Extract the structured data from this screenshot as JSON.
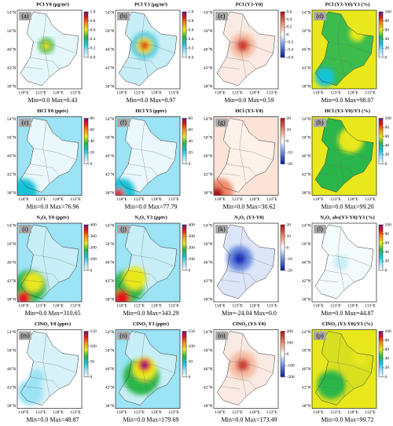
{
  "map_axes": {
    "lat": [
      "54°N",
      "50°N",
      "46°N",
      "42°N",
      "38°N"
    ],
    "lon": [
      "118°E",
      "123°E",
      "128°E",
      "133°E"
    ]
  },
  "panels": [
    {
      "label": "(a)",
      "title": "PCl Y0 (μg/m³)",
      "stats": "Min=0.0  Max=0.43",
      "colormap": "rainbow",
      "clim": [
        0,
        1
      ],
      "cticks": [
        {
          "value": 0,
          "label": "0.0"
        },
        0.2,
        0.4,
        0.6,
        0.8,
        {
          "value": 1,
          "label": "1.0"
        }
      ]
    },
    {
      "label": "(b)",
      "title": "PCl Y3 (μg/m³)",
      "stats": "Min=0.0  Max=0.97",
      "colormap": "rainbow",
      "clim": [
        0,
        1
      ],
      "cticks": [
        {
          "value": 0,
          "label": "0.0"
        },
        0.2,
        0.4,
        0.6,
        0.8,
        {
          "value": 1,
          "label": "1.0"
        }
      ]
    },
    {
      "label": "(c)",
      "title": "PCl (Y3-Y0)",
      "stats": "Min=0.0  Max=0.59",
      "colormap": "diverging",
      "clim": [
        -0.6,
        0.6
      ],
      "cticks": [
        -0.6,
        -0.4,
        -0.2,
        0,
        0.2,
        0.4,
        0.6
      ]
    },
    {
      "label": "(d)",
      "title": "PCl (Y3-Y0)/Y3 (%)",
      "stats": "Min=0.0  Max=98.07",
      "colormap": "rainbow",
      "clim": [
        0,
        100
      ],
      "cticks": [
        0,
        20,
        40,
        60,
        80,
        100
      ]
    },
    {
      "label": "(e)",
      "title": "HCl Y0 (pptv)",
      "stats": "Min=0.0  Max=76.96",
      "colormap": "rainbow",
      "clim": [
        0,
        80
      ],
      "cticks": [
        0,
        20,
        40,
        60,
        80
      ]
    },
    {
      "label": "(f)",
      "title": "HCl Y3 (pptv)",
      "stats": "Min=0.0  Max=77.79",
      "colormap": "rainbow",
      "clim": [
        0,
        80
      ],
      "cticks": [
        0,
        20,
        40,
        60,
        80
      ]
    },
    {
      "label": "(g)",
      "title": "HCl (Y3-Y0)",
      "stats": "Min=0.0  Max=30.62",
      "colormap": "diverging",
      "clim": [
        -20,
        20
      ],
      "cticks": [
        -20,
        -10,
        0,
        10,
        20
      ]
    },
    {
      "label": "(h)",
      "title": "HCl (Y3-Y0)/Y3 (%)",
      "stats": "Min=0.0  Max=99.20",
      "colormap": "rainbow",
      "clim": [
        0,
        100
      ],
      "cticks": [
        0,
        20,
        40,
        60,
        80,
        100
      ]
    },
    {
      "label": "(i)",
      "title": "N₂O₅ Y0 (pptv)",
      "stats": "Min=0.0  Max=310.65",
      "colormap": "rainbow",
      "clim": [
        0,
        400
      ],
      "cticks": [
        0,
        100,
        200,
        300,
        400
      ]
    },
    {
      "label": "(j)",
      "title": "N₂O₅ Y3 (pptv)",
      "stats": "Min=0.0  Max=343.29",
      "colormap": "rainbow",
      "clim": [
        0,
        400
      ],
      "cticks": [
        0,
        100,
        200,
        300,
        400
      ]
    },
    {
      "label": "(k)",
      "title": "N₂O₅ (Y3-Y0)",
      "stats": "Min=-24.04  Max=0.0",
      "colormap": "diverging",
      "clim": [
        -20,
        20
      ],
      "cticks": [
        -20,
        -10,
        0,
        10,
        20
      ]
    },
    {
      "label": "(l)",
      "title": "N₂O₅ abs(Y3-Y0)/Y3 (%)",
      "stats": "Min=0.0  Max=44.87",
      "colormap": "rainbow",
      "clim": [
        0,
        100
      ],
      "cticks": [
        0,
        20,
        40,
        60,
        80,
        100
      ]
    },
    {
      "label": "(m)",
      "title": "ClNO₂ Y0 (pptv)",
      "stats": "Min=0.0  Max=48.87",
      "colormap": "rainbow",
      "clim": [
        0,
        150
      ],
      "cticks": [
        0,
        50,
        100,
        150
      ]
    },
    {
      "label": "(n)",
      "title": "ClNO₂ Y3 (pptv)",
      "stats": "Min=0.0  Max=179.69",
      "colormap": "rainbow",
      "clim": [
        0,
        150
      ],
      "cticks": [
        0,
        50,
        100,
        150
      ]
    },
    {
      "label": "(o)",
      "title": "ClNO₂ (Y3-Y0)",
      "stats": "Min=0.0  Max=173.49",
      "colormap": "diverging",
      "clim": [
        -200,
        200
      ],
      "cticks": [
        -200,
        -100,
        0,
        100,
        200
      ]
    },
    {
      "label": "(p)",
      "title": "ClNO₂ (Y3-Y0)/Y3 (%)",
      "stats": "Min=0.0  Max=99.72",
      "colormap": "rainbow",
      "clim": [
        0,
        100
      ],
      "cticks": [
        0,
        20,
        40,
        60,
        80,
        100
      ]
    }
  ]
}
